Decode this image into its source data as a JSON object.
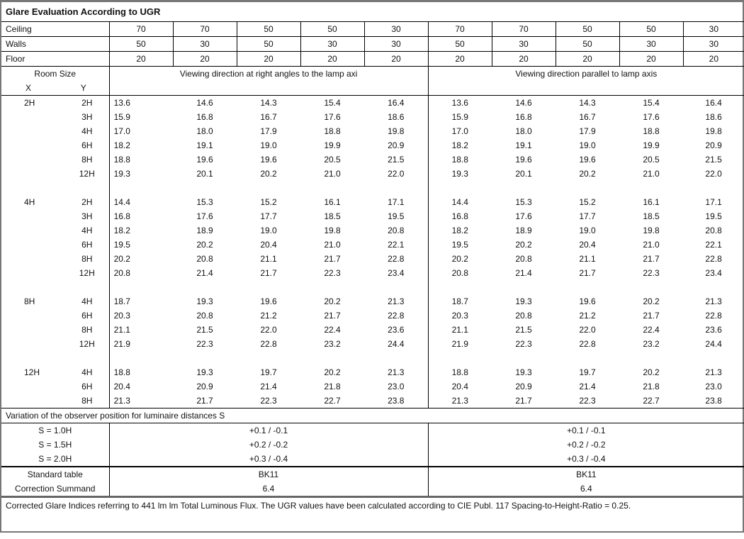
{
  "title": "Glare Evaluation According to UGR",
  "reflectances": [
    {
      "label": "Ceiling",
      "values": [
        "70",
        "70",
        "50",
        "50",
        "30",
        "70",
        "70",
        "50",
        "50",
        "30"
      ]
    },
    {
      "label": "Walls",
      "values": [
        "50",
        "30",
        "50",
        "30",
        "30",
        "50",
        "30",
        "50",
        "30",
        "30"
      ]
    },
    {
      "label": "Floor",
      "values": [
        "20",
        "20",
        "20",
        "20",
        "20",
        "20",
        "20",
        "20",
        "20",
        "20"
      ]
    }
  ],
  "room_size": {
    "label": "Room Size",
    "x_label": "X",
    "y_label": "Y"
  },
  "directions": {
    "right_angles": "Viewing direction at right angles to the lamp axi",
    "parallel": "Viewing direction parallel to lamp axis"
  },
  "groups": [
    {
      "x": "2H",
      "rows": [
        {
          "y": "2H",
          "v": [
            "13.6",
            "14.6",
            "14.3",
            "15.4",
            "16.4",
            "13.6",
            "14.6",
            "14.3",
            "15.4",
            "16.4"
          ]
        },
        {
          "y": "3H",
          "v": [
            "15.9",
            "16.8",
            "16.7",
            "17.6",
            "18.6",
            "15.9",
            "16.8",
            "16.7",
            "17.6",
            "18.6"
          ]
        },
        {
          "y": "4H",
          "v": [
            "17.0",
            "18.0",
            "17.9",
            "18.8",
            "19.8",
            "17.0",
            "18.0",
            "17.9",
            "18.8",
            "19.8"
          ]
        },
        {
          "y": "6H",
          "v": [
            "18.2",
            "19.1",
            "19.0",
            "19.9",
            "20.9",
            "18.2",
            "19.1",
            "19.0",
            "19.9",
            "20.9"
          ]
        },
        {
          "y": "8H",
          "v": [
            "18.8",
            "19.6",
            "19.6",
            "20.5",
            "21.5",
            "18.8",
            "19.6",
            "19.6",
            "20.5",
            "21.5"
          ]
        },
        {
          "y": "12H",
          "v": [
            "19.3",
            "20.1",
            "20.2",
            "21.0",
            "22.0",
            "19.3",
            "20.1",
            "20.2",
            "21.0",
            "22.0"
          ]
        }
      ]
    },
    {
      "x": "4H",
      "rows": [
        {
          "y": "2H",
          "v": [
            "14.4",
            "15.3",
            "15.2",
            "16.1",
            "17.1",
            "14.4",
            "15.3",
            "15.2",
            "16.1",
            "17.1"
          ]
        },
        {
          "y": "3H",
          "v": [
            "16.8",
            "17.6",
            "17.7",
            "18.5",
            "19.5",
            "16.8",
            "17.6",
            "17.7",
            "18.5",
            "19.5"
          ]
        },
        {
          "y": "4H",
          "v": [
            "18.2",
            "18.9",
            "19.0",
            "19.8",
            "20.8",
            "18.2",
            "18.9",
            "19.0",
            "19.8",
            "20.8"
          ]
        },
        {
          "y": "6H",
          "v": [
            "19.5",
            "20.2",
            "20.4",
            "21.0",
            "22.1",
            "19.5",
            "20.2",
            "20.4",
            "21.0",
            "22.1"
          ]
        },
        {
          "y": "8H",
          "v": [
            "20.2",
            "20.8",
            "21.1",
            "21.7",
            "22.8",
            "20.2",
            "20.8",
            "21.1",
            "21.7",
            "22.8"
          ]
        },
        {
          "y": "12H",
          "v": [
            "20.8",
            "21.4",
            "21.7",
            "22.3",
            "23.4",
            "20.8",
            "21.4",
            "21.7",
            "22.3",
            "23.4"
          ]
        }
      ]
    },
    {
      "x": "8H",
      "rows": [
        {
          "y": "4H",
          "v": [
            "18.7",
            "19.3",
            "19.6",
            "20.2",
            "21.3",
            "18.7",
            "19.3",
            "19.6",
            "20.2",
            "21.3"
          ]
        },
        {
          "y": "6H",
          "v": [
            "20.3",
            "20.8",
            "21.2",
            "21.7",
            "22.8",
            "20.3",
            "20.8",
            "21.2",
            "21.7",
            "22.8"
          ]
        },
        {
          "y": "8H",
          "v": [
            "21.1",
            "21.5",
            "22.0",
            "22.4",
            "23.6",
            "21.1",
            "21.5",
            "22.0",
            "22.4",
            "23.6"
          ]
        },
        {
          "y": "12H",
          "v": [
            "21.9",
            "22.3",
            "22.8",
            "23.2",
            "24.4",
            "21.9",
            "22.3",
            "22.8",
            "23.2",
            "24.4"
          ]
        }
      ]
    },
    {
      "x": "12H",
      "rows": [
        {
          "y": "4H",
          "v": [
            "18.8",
            "19.3",
            "19.7",
            "20.2",
            "21.3",
            "18.8",
            "19.3",
            "19.7",
            "20.2",
            "21.3"
          ]
        },
        {
          "y": "6H",
          "v": [
            "20.4",
            "20.9",
            "21.4",
            "21.8",
            "23.0",
            "20.4",
            "20.9",
            "21.4",
            "21.8",
            "23.0"
          ]
        },
        {
          "y": "8H",
          "v": [
            "21.3",
            "21.7",
            "22.3",
            "22.7",
            "23.8",
            "21.3",
            "21.7",
            "22.3",
            "22.7",
            "23.8"
          ]
        }
      ]
    }
  ],
  "variation": {
    "label": "Variation of the observer position for luminaire distances S",
    "rows": [
      {
        "s": "S = 1.0H",
        "right_angles": "+0.1 / -0.1",
        "parallel": "+0.1 / -0.1"
      },
      {
        "s": "S = 1.5H",
        "right_angles": "+0.2 / -0.2",
        "parallel": "+0.2 / -0.2"
      },
      {
        "s": "S = 2.0H",
        "right_angles": "+0.3 / -0.4",
        "parallel": "+0.3 / -0.4"
      }
    ]
  },
  "standard": [
    {
      "label": "Standard table",
      "right_angles": "BK11",
      "parallel": "BK11"
    },
    {
      "label": "Correction Summand",
      "right_angles": "6.4",
      "parallel": "6.4"
    }
  ],
  "footer": "Corrected Glare Indices referring to 441 lm lm Total Luminous Flux. The UGR values have been calculated according to CIE Publ. 117    Spacing-to-Height-Ratio = 0.25."
}
